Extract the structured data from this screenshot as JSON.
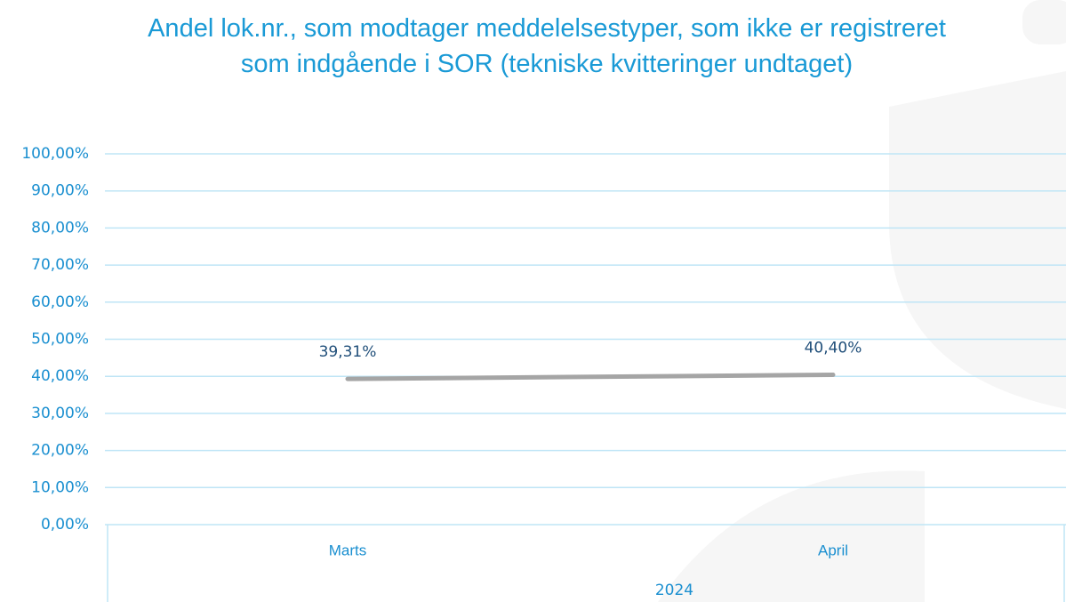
{
  "chart_data": {
    "type": "line",
    "title": "Andel lok.nr., som modtager meddelelsestyper, som ikke er registreret som indgående i SOR (tekniske kvitteringer undtaget)",
    "categories": [
      "Marts",
      "April"
    ],
    "x_group_label": "2024",
    "series": [
      {
        "name": "Andel",
        "color": "#a5a5a5",
        "values": [
          39.31,
          40.4
        ],
        "value_labels": [
          "39,31%",
          "40,40%"
        ]
      }
    ],
    "ylim": [
      0,
      100
    ],
    "yticks": [
      {
        "value": 0,
        "label": "0,00%"
      },
      {
        "value": 10,
        "label": "10,00%"
      },
      {
        "value": 20,
        "label": "20,00%"
      },
      {
        "value": 30,
        "label": "30,00%"
      },
      {
        "value": 40,
        "label": "40,00%"
      },
      {
        "value": 50,
        "label": "50,00%"
      },
      {
        "value": 60,
        "label": "60,00%"
      },
      {
        "value": 70,
        "label": "70,00%"
      },
      {
        "value": 80,
        "label": "80,00%"
      },
      {
        "value": 90,
        "label": "90,00%"
      },
      {
        "value": 100,
        "label": "100,00%"
      }
    ],
    "grid": true
  }
}
